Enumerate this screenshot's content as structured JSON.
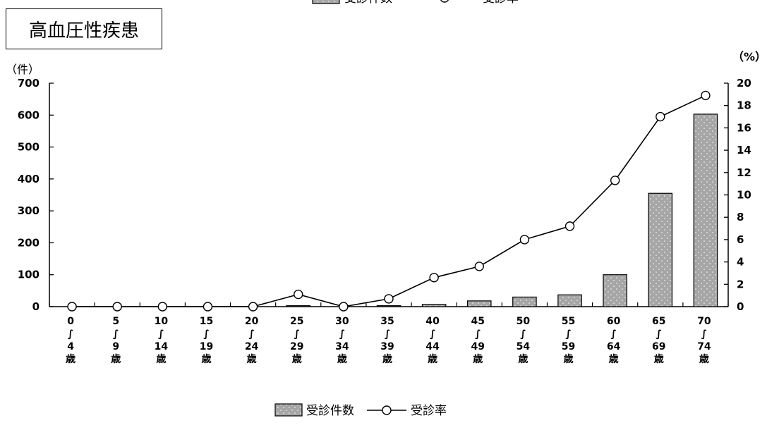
{
  "title": "高血圧性疾患",
  "chart_data": {
    "type": "bar",
    "title": "高血圧性疾患",
    "categories": [
      [
        "0",
        "∫",
        "4",
        "歳"
      ],
      [
        "5",
        "∫",
        "9",
        "歳"
      ],
      [
        "10",
        "∫",
        "14",
        "歳"
      ],
      [
        "15",
        "∫",
        "19",
        "歳"
      ],
      [
        "20",
        "∫",
        "24",
        "歳"
      ],
      [
        "25",
        "∫",
        "29",
        "歳"
      ],
      [
        "30",
        "∫",
        "34",
        "歳"
      ],
      [
        "35",
        "∫",
        "39",
        "歳"
      ],
      [
        "40",
        "∫",
        "44",
        "歳"
      ],
      [
        "45",
        "∫",
        "49",
        "歳"
      ],
      [
        "50",
        "∫",
        "54",
        "歳"
      ],
      [
        "55",
        "∫",
        "59",
        "歳"
      ],
      [
        "60",
        "∫",
        "64",
        "歳"
      ],
      [
        "65",
        "∫",
        "69",
        "歳"
      ],
      [
        "70",
        "∫",
        "74",
        "歳"
      ]
    ],
    "series": [
      {
        "name": "受診件数",
        "type": "bar",
        "axis": "left",
        "values": [
          0,
          0,
          0,
          0,
          0,
          3,
          0,
          3,
          7,
          18,
          30,
          37,
          100,
          355,
          603
        ]
      },
      {
        "name": "受診率",
        "type": "line",
        "axis": "right",
        "values": [
          0,
          0,
          0,
          0,
          0,
          1.1,
          0,
          0.7,
          2.6,
          3.6,
          6.0,
          7.2,
          11.3,
          17.0,
          18.9
        ]
      }
    ],
    "y_left": {
      "unit": "（件）",
      "range": [
        0,
        700
      ],
      "ticks": [
        0,
        100,
        200,
        300,
        400,
        500,
        600,
        700
      ]
    },
    "y_right": {
      "unit": "（%）",
      "range": [
        0,
        20
      ],
      "ticks": [
        0,
        2,
        4,
        6,
        8,
        10,
        12,
        14,
        16,
        18,
        20
      ]
    },
    "legend": {
      "placement": "bottom-center",
      "items": [
        {
          "label": "受診件数",
          "kind": "bar"
        },
        {
          "label": "受診率",
          "kind": "line-marker"
        }
      ]
    },
    "grid": false,
    "colors": {
      "bar_fill": "#a6a6a6",
      "bar_dot": "#ffffff",
      "line": "#000000",
      "marker_fill": "#ffffff"
    }
  }
}
